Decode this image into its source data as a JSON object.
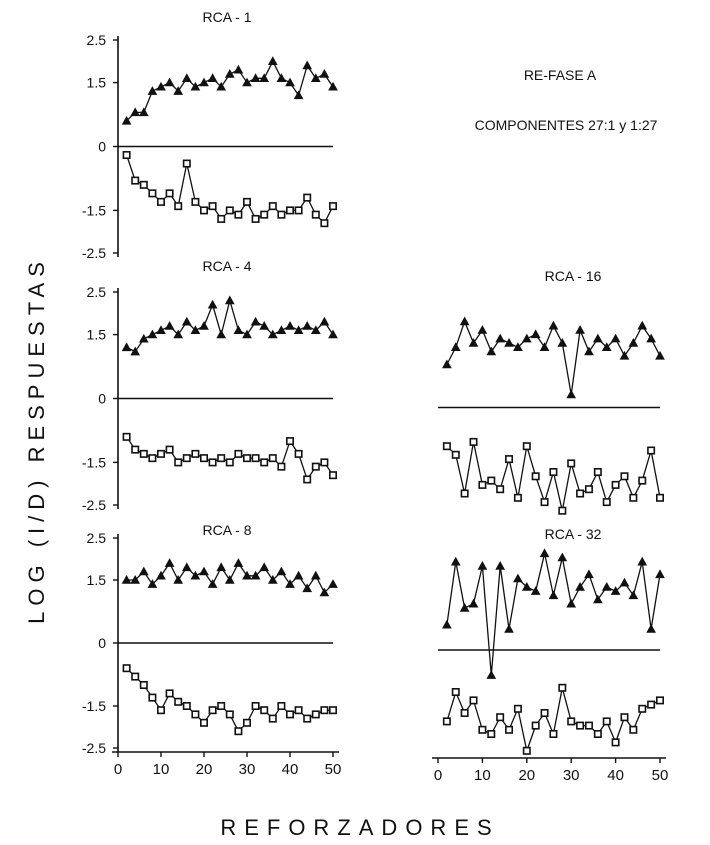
{
  "figure": {
    "ylabel": "LOG (I/D) RESPUESTAS",
    "xlabel": "REFORZADORES",
    "annotation_line1": "RE-FASE A",
    "annotation_line2": "COMPONENTES 27:1 y 1:27"
  },
  "chart_data": [
    {
      "type": "line",
      "title": "RCA - 1",
      "ylim": [
        -2.5,
        2.5
      ],
      "yticks": [
        "2.5",
        "1.5",
        "0",
        "-1.5",
        "-2.5"
      ],
      "xlim": [
        0,
        50
      ],
      "xticks": [],
      "series": [
        {
          "marker": "triangle",
          "x": [
            2,
            4,
            6,
            8,
            10,
            12,
            14,
            16,
            18,
            20,
            22,
            24,
            26,
            28,
            30,
            32,
            34,
            36,
            38,
            40,
            42,
            44,
            46,
            48,
            50
          ],
          "y": [
            0.6,
            0.8,
            0.8,
            1.3,
            1.4,
            1.5,
            1.3,
            1.6,
            1.4,
            1.5,
            1.6,
            1.4,
            1.7,
            1.8,
            1.5,
            1.6,
            1.6,
            2.0,
            1.6,
            1.5,
            1.2,
            1.9,
            1.6,
            1.7,
            1.4
          ]
        },
        {
          "marker": "square",
          "x": [
            2,
            4,
            6,
            8,
            10,
            12,
            14,
            16,
            18,
            20,
            22,
            24,
            26,
            28,
            30,
            32,
            34,
            36,
            38,
            40,
            42,
            44,
            46,
            48,
            50
          ],
          "y": [
            -0.2,
            -0.8,
            -0.9,
            -1.1,
            -1.3,
            -1.1,
            -1.4,
            -0.4,
            -1.3,
            -1.5,
            -1.4,
            -1.7,
            -1.5,
            -1.6,
            -1.3,
            -1.7,
            -1.6,
            -1.4,
            -1.6,
            -1.5,
            -1.5,
            -1.2,
            -1.6,
            -1.8,
            -1.4
          ]
        }
      ]
    },
    {
      "type": "line",
      "title": "RCA - 4",
      "ylim": [
        -2.5,
        2.5
      ],
      "yticks": [
        "2.5",
        "1.5",
        "0",
        "-1.5",
        "-2.5"
      ],
      "xlim": [
        0,
        50
      ],
      "xticks": [],
      "series": [
        {
          "marker": "triangle",
          "x": [
            2,
            4,
            6,
            8,
            10,
            12,
            14,
            16,
            18,
            20,
            22,
            24,
            26,
            28,
            30,
            32,
            34,
            36,
            38,
            40,
            42,
            44,
            46,
            48,
            50
          ],
          "y": [
            1.2,
            1.1,
            1.4,
            1.5,
            1.6,
            1.7,
            1.5,
            1.8,
            1.6,
            1.7,
            2.2,
            1.5,
            2.3,
            1.6,
            1.5,
            1.8,
            1.7,
            1.5,
            1.6,
            1.7,
            1.6,
            1.7,
            1.6,
            1.8,
            1.5
          ]
        },
        {
          "marker": "square",
          "x": [
            2,
            4,
            6,
            8,
            10,
            12,
            14,
            16,
            18,
            20,
            22,
            24,
            26,
            28,
            30,
            32,
            34,
            36,
            38,
            40,
            42,
            44,
            46,
            48,
            50
          ],
          "y": [
            -0.9,
            -1.2,
            -1.3,
            -1.4,
            -1.3,
            -1.2,
            -1.5,
            -1.4,
            -1.3,
            -1.4,
            -1.5,
            -1.4,
            -1.5,
            -1.3,
            -1.4,
            -1.4,
            -1.5,
            -1.4,
            -1.6,
            -1.0,
            -1.3,
            -1.9,
            -1.6,
            -1.5,
            -1.8
          ]
        }
      ]
    },
    {
      "type": "line",
      "title": "RCA - 8",
      "ylim": [
        -2.5,
        2.5
      ],
      "yticks": [
        "2.5",
        "1.5",
        "0",
        "-1.5",
        "-2.5"
      ],
      "xlim": [
        0,
        50
      ],
      "xticks": [
        "0",
        "10",
        "20",
        "30",
        "40",
        "50"
      ],
      "series": [
        {
          "marker": "triangle",
          "x": [
            2,
            4,
            6,
            8,
            10,
            12,
            14,
            16,
            18,
            20,
            22,
            24,
            26,
            28,
            30,
            32,
            34,
            36,
            38,
            40,
            42,
            44,
            46,
            48,
            50
          ],
          "y": [
            1.5,
            1.5,
            1.7,
            1.4,
            1.6,
            1.9,
            1.5,
            1.8,
            1.6,
            1.7,
            1.4,
            1.8,
            1.5,
            1.9,
            1.6,
            1.6,
            1.8,
            1.5,
            1.7,
            1.4,
            1.6,
            1.3,
            1.6,
            1.2,
            1.4
          ]
        },
        {
          "marker": "square",
          "x": [
            2,
            4,
            6,
            8,
            10,
            12,
            14,
            16,
            18,
            20,
            22,
            24,
            26,
            28,
            30,
            32,
            34,
            36,
            38,
            40,
            42,
            44,
            46,
            48,
            50
          ],
          "y": [
            -0.6,
            -0.8,
            -1.0,
            -1.3,
            -1.6,
            -1.2,
            -1.4,
            -1.5,
            -1.7,
            -1.9,
            -1.6,
            -1.5,
            -1.7,
            -2.1,
            -1.9,
            -1.5,
            -1.6,
            -1.8,
            -1.5,
            -1.7,
            -1.6,
            -1.8,
            -1.7,
            -1.6,
            -1.6
          ]
        }
      ]
    },
    {
      "type": "line",
      "title": "RCA - 16",
      "ylim": [
        -2.5,
        2.5
      ],
      "yticks": [],
      "xlim": [
        0,
        50
      ],
      "xticks": [],
      "series": [
        {
          "marker": "triangle",
          "x": [
            2,
            4,
            6,
            8,
            10,
            12,
            14,
            16,
            18,
            20,
            22,
            24,
            26,
            28,
            30,
            32,
            34,
            36,
            38,
            40,
            42,
            44,
            46,
            48,
            50
          ],
          "y": [
            1.0,
            1.4,
            2.0,
            1.5,
            1.8,
            1.3,
            1.6,
            1.5,
            1.4,
            1.6,
            1.7,
            1.4,
            1.9,
            1.5,
            0.3,
            1.8,
            1.3,
            1.6,
            1.4,
            1.6,
            1.2,
            1.5,
            1.9,
            1.6,
            1.2
          ]
        },
        {
          "marker": "square",
          "x": [
            2,
            4,
            6,
            8,
            10,
            12,
            14,
            16,
            18,
            20,
            22,
            24,
            26,
            28,
            30,
            32,
            34,
            36,
            38,
            40,
            42,
            44,
            46,
            48,
            50
          ],
          "y": [
            -0.9,
            -1.1,
            -2.0,
            -0.8,
            -1.8,
            -1.7,
            -1.9,
            -1.2,
            -2.1,
            -0.9,
            -1.6,
            -2.2,
            -1.5,
            -2.4,
            -1.3,
            -2.0,
            -1.9,
            -1.5,
            -2.2,
            -1.8,
            -1.6,
            -2.1,
            -1.7,
            -1.0,
            -2.1
          ]
        }
      ]
    },
    {
      "type": "line",
      "title": "RCA - 32",
      "ylim": [
        -2.5,
        2.5
      ],
      "yticks": [],
      "xlim": [
        0,
        50
      ],
      "xticks": [
        "0",
        "10",
        "20",
        "30",
        "40",
        "50"
      ],
      "series": [
        {
          "marker": "triangle",
          "x": [
            2,
            4,
            6,
            8,
            10,
            12,
            14,
            16,
            18,
            20,
            22,
            24,
            26,
            28,
            30,
            32,
            34,
            36,
            38,
            40,
            42,
            44,
            46,
            48,
            50
          ],
          "y": [
            0.6,
            2.1,
            1.0,
            1.1,
            2.0,
            -0.6,
            2.0,
            0.5,
            1.7,
            1.5,
            1.4,
            2.3,
            1.3,
            2.2,
            1.1,
            1.5,
            1.8,
            1.2,
            1.5,
            1.4,
            1.6,
            1.3,
            2.1,
            0.5,
            1.8
          ]
        },
        {
          "marker": "square",
          "x": [
            2,
            4,
            6,
            8,
            10,
            12,
            14,
            16,
            18,
            20,
            22,
            24,
            26,
            28,
            30,
            32,
            34,
            36,
            38,
            40,
            42,
            44,
            46,
            48,
            50
          ],
          "y": [
            -1.7,
            -1.0,
            -1.5,
            -1.2,
            -1.9,
            -2.0,
            -1.6,
            -1.9,
            -1.4,
            -2.4,
            -1.8,
            -1.5,
            -2.0,
            -0.9,
            -1.7,
            -1.8,
            -1.8,
            -2.0,
            -1.7,
            -2.2,
            -1.6,
            -1.9,
            -1.4,
            -1.3,
            -1.2
          ]
        }
      ]
    }
  ]
}
